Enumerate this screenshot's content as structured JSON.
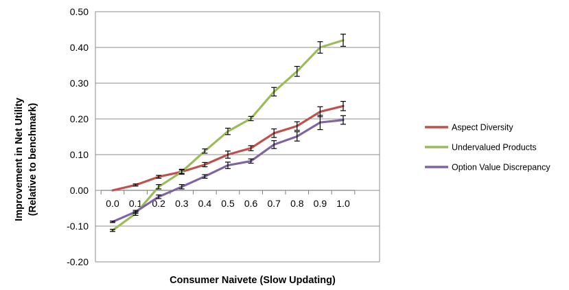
{
  "chart_data": {
    "type": "line",
    "title": "",
    "xlabel": "Consumer Naivete (Slow Updating)",
    "ylabel": "Improvement in Net Utility",
    "ylabel_line2": "(Relative to benchmark)",
    "x": [
      0.0,
      0.1,
      0.2,
      0.3,
      0.4,
      0.5,
      0.6,
      0.7,
      0.8,
      0.9,
      1.0
    ],
    "x_tick_labels": [
      "0.0",
      "0.1",
      "0.2",
      "0.3",
      "0.4",
      "0.5",
      "0.6",
      "0.7",
      "0.8",
      "0.9",
      "1.0"
    ],
    "ylim": [
      -0.2,
      0.5
    ],
    "y_ticks": [
      -0.2,
      -0.1,
      0.0,
      0.1,
      0.2,
      0.3,
      0.4,
      0.5
    ],
    "y_tick_labels": [
      "-0.20",
      "-0.10",
      "0.00",
      "0.10",
      "0.20",
      "0.30",
      "0.40",
      "0.50"
    ],
    "grid": "horizontal",
    "legend_position": "right",
    "error_bars": true,
    "series": [
      {
        "name": "Aspect Diversity",
        "color": "#c0504d",
        "values": [
          0.0,
          0.015,
          0.038,
          0.052,
          0.072,
          0.1,
          0.118,
          0.16,
          0.18,
          0.22,
          0.236
        ],
        "errors": [
          0.0,
          0.003,
          0.004,
          0.005,
          0.006,
          0.01,
          0.007,
          0.012,
          0.012,
          0.014,
          0.013
        ]
      },
      {
        "name": "Undervalued Products",
        "color": "#9bbb59",
        "values": [
          -0.112,
          -0.065,
          0.01,
          0.052,
          0.11,
          0.165,
          0.201,
          0.276,
          0.333,
          0.4,
          0.42
        ],
        "errors": [
          0.003,
          0.005,
          0.006,
          0.007,
          0.006,
          0.009,
          0.006,
          0.012,
          0.014,
          0.016,
          0.017
        ]
      },
      {
        "name": "Option Value Discrepancy",
        "color": "#8064a2",
        "values": [
          -0.088,
          -0.06,
          -0.018,
          0.01,
          0.039,
          0.07,
          0.082,
          0.128,
          0.151,
          0.19,
          0.197
        ],
        "errors": [
          0.002,
          0.004,
          0.005,
          0.006,
          0.005,
          0.009,
          0.006,
          0.011,
          0.013,
          0.02,
          0.012
        ]
      }
    ]
  }
}
